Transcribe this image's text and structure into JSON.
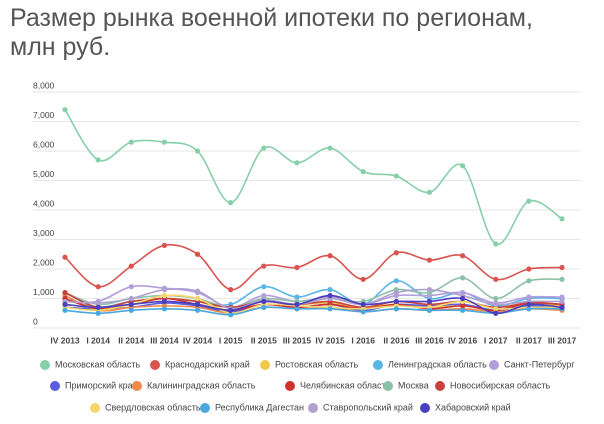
{
  "chart_data": {
    "type": "line",
    "title": "Размер рынка военной ипотеки по регионам, млн руб.",
    "categories": [
      "IV 2013",
      "I 2014",
      "II 2014",
      "III 2014",
      "IV 2014",
      "I 2015",
      "II 2015",
      "III 2015",
      "IV 2015",
      "I 2016",
      "II 2016",
      "III 2016",
      "IV 2016",
      "I 2017",
      "II 2017",
      "III 2017"
    ],
    "ylim": [
      0,
      8000
    ],
    "yticks": [
      0,
      {
        "value": 1000,
        "label": "1,000"
      },
      {
        "value": 2000,
        "label": "2,000"
      },
      {
        "value": 3000,
        "label": "3,000"
      },
      {
        "value": 4000,
        "label": "4,000"
      },
      {
        "value": 5000,
        "label": "5,000"
      },
      {
        "value": 6000,
        "label": "6,000"
      },
      {
        "value": 7000,
        "label": "7,000"
      },
      {
        "value": 8000,
        "label": "8,000"
      }
    ],
    "grid": true,
    "series": [
      {
        "name": "Московская область",
        "color": "#87cfa9",
        "values": [
          7400,
          5700,
          6300,
          6300,
          6000,
          4250,
          6100,
          5600,
          6100,
          5300,
          5150,
          4600,
          5500,
          2850,
          4300,
          3700
        ]
      },
      {
        "name": "Краснодарский край",
        "color": "#d9534f",
        "values": [
          2400,
          1400,
          2100,
          2800,
          2500,
          1300,
          2100,
          2050,
          2450,
          1650,
          2550,
          2300,
          2450,
          1650,
          2000,
          2050
        ]
      },
      {
        "name": "Ростовская область",
        "color": "#f0c94a",
        "values": [
          800,
          700,
          800,
          1000,
          900,
          600,
          900,
          800,
          850,
          700,
          800,
          700,
          800,
          600,
          800,
          750
        ]
      },
      {
        "name": "Ленинградская область",
        "color": "#5ab4e5",
        "values": [
          1000,
          700,
          900,
          1000,
          900,
          800,
          1400,
          1050,
          1300,
          800,
          1600,
          1000,
          1200,
          750,
          1000,
          1000
        ]
      },
      {
        "name": "Санкт-Петербург",
        "color": "#b39ddb",
        "values": [
          900,
          900,
          1400,
          1350,
          1200,
          700,
          1100,
          900,
          1050,
          800,
          1100,
          1100,
          1200,
          850,
          1050,
          1050
        ]
      },
      {
        "name": "Приморский край",
        "color": "#5c5ce0",
        "values": [
          700,
          650,
          700,
          850,
          750,
          550,
          800,
          700,
          800,
          600,
          800,
          750,
          800,
          600,
          750,
          700
        ]
      },
      {
        "name": "Калининградская область",
        "color": "#f08a4b",
        "values": [
          1100,
          600,
          700,
          750,
          700,
          500,
          700,
          650,
          700,
          550,
          650,
          600,
          650,
          550,
          650,
          600
        ]
      },
      {
        "name": "Челябинская область",
        "color": "#d0312d",
        "values": [
          1000,
          650,
          800,
          1000,
          800,
          600,
          800,
          700,
          800,
          650,
          800,
          650,
          750,
          600,
          850,
          800
        ]
      },
      {
        "name": "Москва",
        "color": "#8dc0a8",
        "values": [
          1200,
          800,
          1000,
          1100,
          1000,
          700,
          1000,
          900,
          1000,
          900,
          1300,
          1200,
          1700,
          1000,
          1600,
          1650
        ]
      },
      {
        "name": "Новосибирская область",
        "color": "#c9413f",
        "values": [
          1200,
          700,
          900,
          1000,
          900,
          700,
          900,
          800,
          900,
          700,
          900,
          800,
          900,
          700,
          850,
          800
        ]
      },
      {
        "name": "Свердловская область",
        "color": "#f5d76e",
        "values": [
          700,
          600,
          800,
          1100,
          1000,
          500,
          800,
          750,
          700,
          650,
          750,
          700,
          900,
          650,
          700,
          700
        ]
      },
      {
        "name": "Республика Дагестан",
        "color": "#4aa8e0",
        "values": [
          600,
          500,
          600,
          650,
          600,
          450,
          700,
          650,
          650,
          550,
          650,
          600,
          600,
          500,
          650,
          650
        ]
      },
      {
        "name": "Ставропольский край",
        "color": "#b0a0d0",
        "values": [
          900,
          850,
          1000,
          1300,
          1250,
          650,
          950,
          800,
          1000,
          800,
          1200,
          1300,
          1100,
          800,
          900,
          900
        ]
      },
      {
        "name": "Хабаровский край",
        "color": "#4b3fc0",
        "values": [
          800,
          700,
          800,
          900,
          800,
          600,
          900,
          800,
          1100,
          800,
          900,
          900,
          1000,
          500,
          800,
          700
        ]
      }
    ]
  }
}
